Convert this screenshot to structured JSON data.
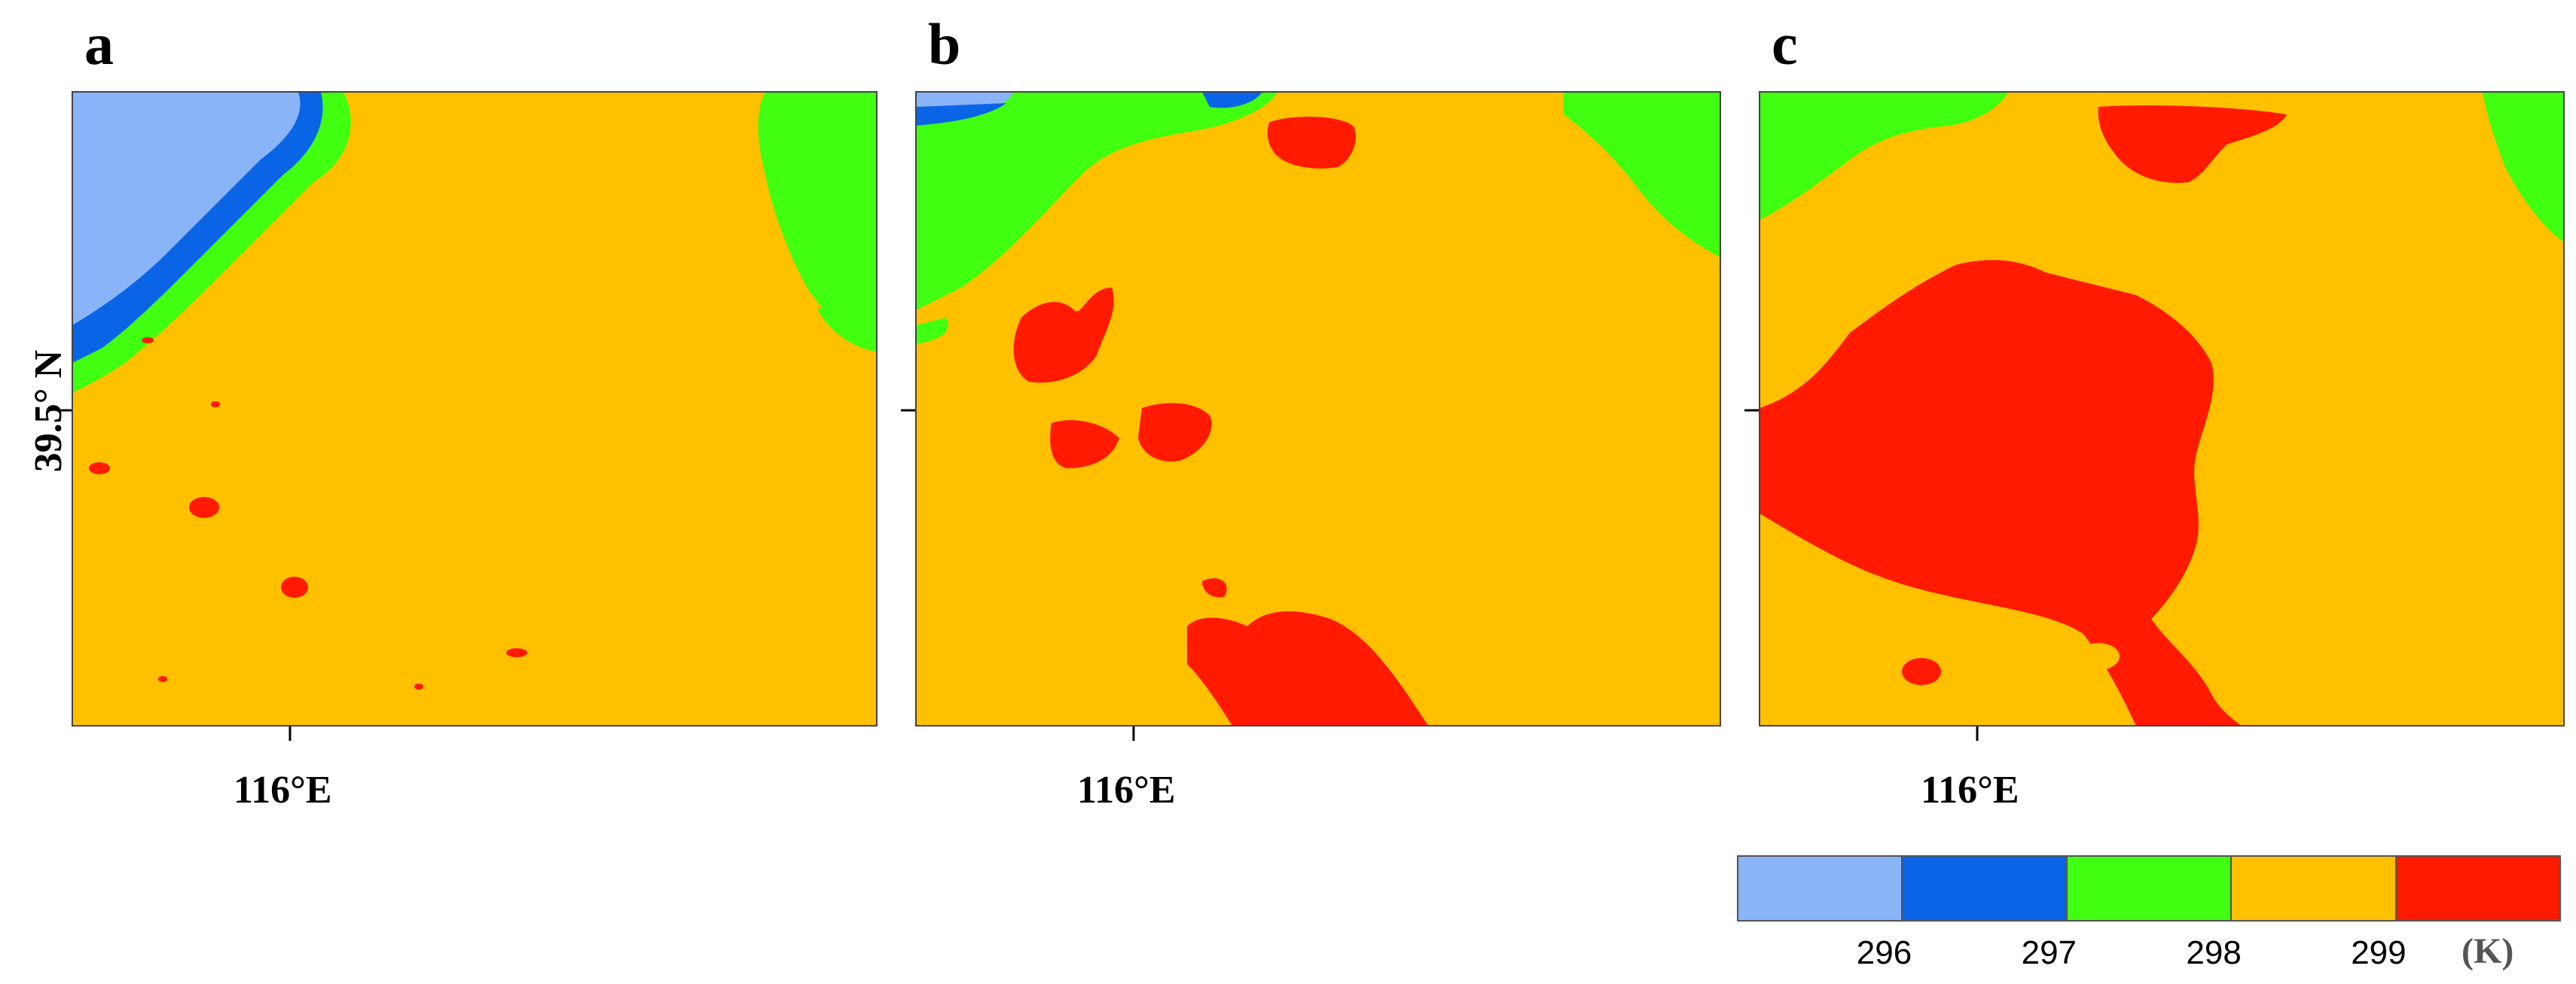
{
  "panels": [
    {
      "letter": "a",
      "x_tick": "116°E",
      "y_tick": "39.5° N"
    },
    {
      "letter": "b",
      "x_tick": "116°E"
    },
    {
      "letter": "c",
      "x_tick": "116°E"
    }
  ],
  "legend": {
    "unit": "(K)",
    "tick_labels": [
      "296",
      "297",
      "298",
      "299"
    ],
    "colors": [
      "#8ab4f8",
      "#0a64e6",
      "#40ff10",
      "#ffc000",
      "#ff1a00"
    ]
  }
}
